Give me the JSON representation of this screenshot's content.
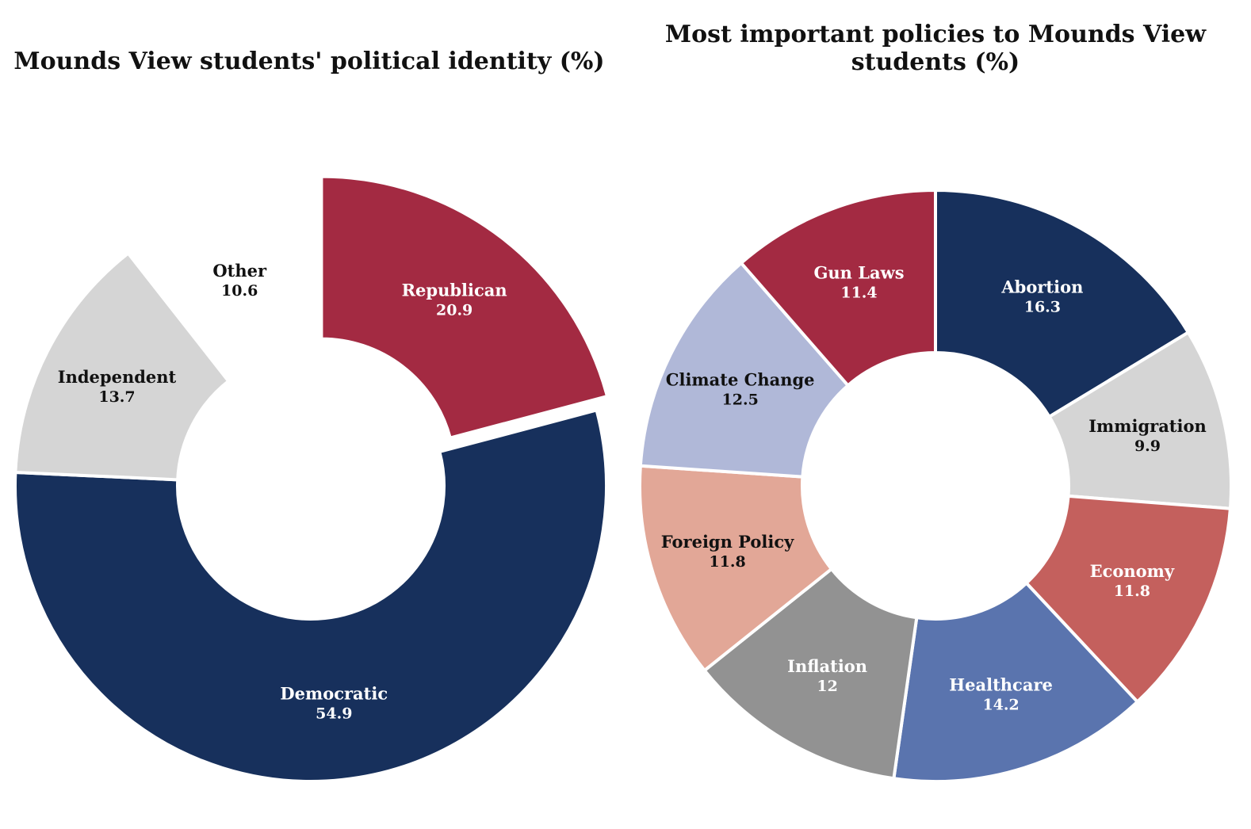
{
  "chart_data": [
    {
      "type": "pie",
      "variant": "donut",
      "title": "Mounds View students' political identity (%)",
      "categories": [
        "Republican",
        "Democratic",
        "Independent",
        "Other"
      ],
      "values": [
        20.9,
        54.9,
        13.7,
        10.6
      ],
      "colors": [
        "#A32A42",
        "#17305C",
        "#D5D5D5",
        "#FFFFFF"
      ],
      "label_colors": [
        "#FFFFFF",
        "#FFFFFF",
        "#111111",
        "#111111"
      ],
      "start": "12 o'clock",
      "direction": "clockwise",
      "legend": "none"
    },
    {
      "type": "pie",
      "variant": "donut",
      "title": "Most important policies to Mounds View students (%)",
      "categories": [
        "Abortion",
        "Immigration",
        "Economy",
        "Healthcare",
        "Inflation",
        "Foreign Policy",
        "Climate Change",
        "Gun Laws"
      ],
      "values": [
        16.3,
        9.9,
        11.8,
        14.2,
        12,
        11.8,
        12.5,
        11.4
      ],
      "colors": [
        "#17305C",
        "#D5D5D5",
        "#C4605D",
        "#5A74AE",
        "#929292",
        "#E2A797",
        "#B0B8D8",
        "#A32A42"
      ],
      "label_colors": [
        "#FFFFFF",
        "#111111",
        "#FFFFFF",
        "#FFFFFF",
        "#FFFFFF",
        "#111111",
        "#111111",
        "#FFFFFF"
      ],
      "start": "12 o'clock",
      "direction": "clockwise",
      "legend": "none"
    }
  ]
}
